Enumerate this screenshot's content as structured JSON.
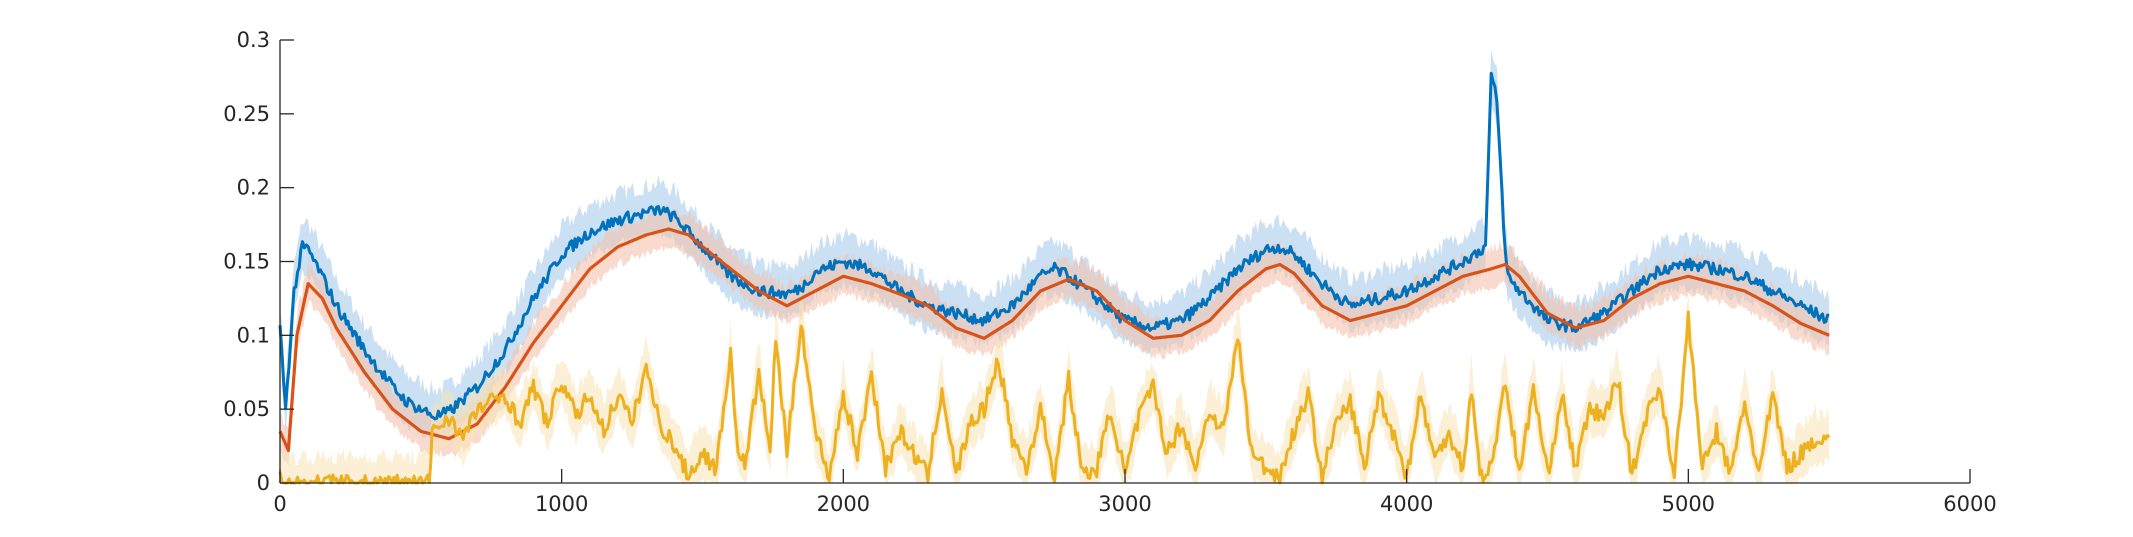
{
  "chart_data": {
    "type": "line",
    "title": "",
    "xlabel": "",
    "ylabel": "",
    "xlim": [
      0,
      6000
    ],
    "ylim": [
      0,
      0.3
    ],
    "x_ticks": [
      0,
      1000,
      2000,
      3000,
      4000,
      5000,
      6000
    ],
    "x_tick_labels": [
      "0",
      "1000",
      "2000",
      "3000",
      "4000",
      "5000",
      "6000"
    ],
    "y_ticks": [
      0,
      0.05,
      0.1,
      0.15,
      0.2,
      0.25,
      0.3
    ],
    "y_tick_labels": [
      "0",
      "0.05",
      "0.1",
      "0.15",
      "0.2",
      "0.25",
      "0.3"
    ],
    "grid": false,
    "legend": "none",
    "series": [
      {
        "color": "#0072BD",
        "band_color": "#A9CCEB",
        "x": [
          0,
          20,
          50,
          80,
          100,
          150,
          200,
          300,
          400,
          450,
          500,
          550,
          600,
          700,
          800,
          900,
          1000,
          1100,
          1200,
          1300,
          1350,
          1400,
          1500,
          1600,
          1700,
          1800,
          1850,
          1900,
          2000,
          2100,
          2200,
          2300,
          2400,
          2500,
          2600,
          2700,
          2750,
          2800,
          2900,
          3000,
          3100,
          3200,
          3300,
          3400,
          3500,
          3550,
          3600,
          3700,
          3800,
          3900,
          4000,
          4100,
          4200,
          4280,
          4300,
          4320,
          4350,
          4360,
          4400,
          4500,
          4600,
          4700,
          4800,
          4900,
          5000,
          5100,
          5200,
          5300,
          5400,
          5500
        ],
        "y": [
          0.105,
          0.05,
          0.13,
          0.16,
          0.158,
          0.14,
          0.12,
          0.09,
          0.065,
          0.055,
          0.05,
          0.045,
          0.048,
          0.065,
          0.09,
          0.125,
          0.155,
          0.17,
          0.178,
          0.183,
          0.185,
          0.18,
          0.16,
          0.14,
          0.13,
          0.128,
          0.132,
          0.143,
          0.15,
          0.145,
          0.13,
          0.12,
          0.115,
          0.11,
          0.12,
          0.14,
          0.145,
          0.14,
          0.125,
          0.11,
          0.105,
          0.11,
          0.125,
          0.145,
          0.158,
          0.16,
          0.155,
          0.135,
          0.12,
          0.125,
          0.13,
          0.14,
          0.15,
          0.16,
          0.275,
          0.26,
          0.155,
          0.14,
          0.13,
          0.11,
          0.105,
          0.115,
          0.13,
          0.145,
          0.148,
          0.145,
          0.14,
          0.13,
          0.12,
          0.11
        ],
        "band": 0.02
      },
      {
        "color": "#D95319",
        "band_color": "#F3C3AE",
        "x": [
          0,
          30,
          60,
          100,
          150,
          200,
          300,
          400,
          500,
          600,
          700,
          800,
          900,
          1000,
          1100,
          1200,
          1300,
          1380,
          1450,
          1500,
          1600,
          1700,
          1800,
          1900,
          2000,
          2100,
          2200,
          2300,
          2400,
          2500,
          2600,
          2700,
          2800,
          2900,
          3000,
          3100,
          3200,
          3300,
          3400,
          3500,
          3550,
          3600,
          3700,
          3800,
          3900,
          4000,
          4100,
          4200,
          4300,
          4350,
          4400,
          4500,
          4600,
          4700,
          4800,
          4900,
          5000,
          5100,
          5200,
          5300,
          5400,
          5500
        ],
        "y": [
          0.035,
          0.022,
          0.1,
          0.135,
          0.125,
          0.105,
          0.075,
          0.05,
          0.035,
          0.03,
          0.04,
          0.065,
          0.095,
          0.12,
          0.145,
          0.16,
          0.168,
          0.172,
          0.168,
          0.16,
          0.145,
          0.13,
          0.12,
          0.13,
          0.14,
          0.135,
          0.128,
          0.12,
          0.105,
          0.098,
          0.11,
          0.13,
          0.138,
          0.13,
          0.11,
          0.098,
          0.1,
          0.11,
          0.13,
          0.145,
          0.148,
          0.142,
          0.12,
          0.11,
          0.115,
          0.12,
          0.13,
          0.14,
          0.145,
          0.148,
          0.14,
          0.115,
          0.105,
          0.11,
          0.125,
          0.135,
          0.14,
          0.135,
          0.13,
          0.12,
          0.108,
          0.1
        ],
        "band": 0.015
      },
      {
        "color": "#EDB120",
        "band_color": "#F7E3B5",
        "x": [
          0,
          20,
          50,
          500,
          530,
          540,
          600,
          650,
          700,
          800,
          850,
          900,
          950,
          1000,
          1050,
          1100,
          1150,
          1200,
          1250,
          1300,
          1320,
          1350,
          1400,
          1450,
          1500,
          1550,
          1600,
          1620,
          1650,
          1700,
          1740,
          1760,
          1800,
          1850,
          1900,
          1950,
          2000,
          2050,
          2100,
          2150,
          2200,
          2300,
          2350,
          2400,
          2450,
          2500,
          2550,
          2600,
          2650,
          2700,
          2750,
          2800,
          2850,
          2900,
          2950,
          3000,
          3050,
          3100,
          3150,
          3200,
          3250,
          3300,
          3350,
          3400,
          3450,
          3500,
          3550,
          3600,
          3650,
          3700,
          3750,
          3800,
          3850,
          3900,
          3950,
          4000,
          4050,
          4100,
          4150,
          4200,
          4230,
          4260,
          4300,
          4350,
          4400,
          4450,
          4500,
          4550,
          4600,
          4650,
          4700,
          4750,
          4800,
          4850,
          4900,
          4950,
          5000,
          5050,
          5100,
          5150,
          5200,
          5250,
          5300,
          5350,
          5400,
          5450,
          5500
        ],
        "y": [
          0.01,
          0.0,
          0.0,
          0.0,
          0.0,
          0.035,
          0.045,
          0.03,
          0.05,
          0.06,
          0.04,
          0.065,
          0.04,
          0.07,
          0.045,
          0.06,
          0.035,
          0.06,
          0.04,
          0.08,
          0.06,
          0.04,
          0.025,
          0.005,
          0.02,
          0.01,
          0.09,
          0.03,
          0.01,
          0.075,
          0.02,
          0.1,
          0.02,
          0.11,
          0.035,
          0.005,
          0.06,
          0.02,
          0.075,
          0.01,
          0.035,
          0.005,
          0.065,
          0.005,
          0.04,
          0.05,
          0.085,
          0.03,
          0.01,
          0.05,
          0.005,
          0.07,
          0.005,
          0.01,
          0.05,
          0.005,
          0.045,
          0.065,
          0.02,
          0.04,
          0.01,
          0.05,
          0.035,
          0.1,
          0.02,
          0.01,
          0.005,
          0.035,
          0.06,
          0.005,
          0.04,
          0.055,
          0.01,
          0.06,
          0.035,
          0.005,
          0.06,
          0.015,
          0.035,
          0.01,
          0.065,
          0.005,
          0.01,
          0.07,
          0.005,
          0.065,
          0.005,
          0.06,
          0.01,
          0.05,
          0.045,
          0.07,
          0.005,
          0.045,
          0.065,
          0.005,
          0.11,
          0.01,
          0.035,
          0.005,
          0.055,
          0.005,
          0.06,
          0.01,
          0.02,
          0.03,
          0.03
        ],
        "band": 0.02
      }
    ]
  }
}
